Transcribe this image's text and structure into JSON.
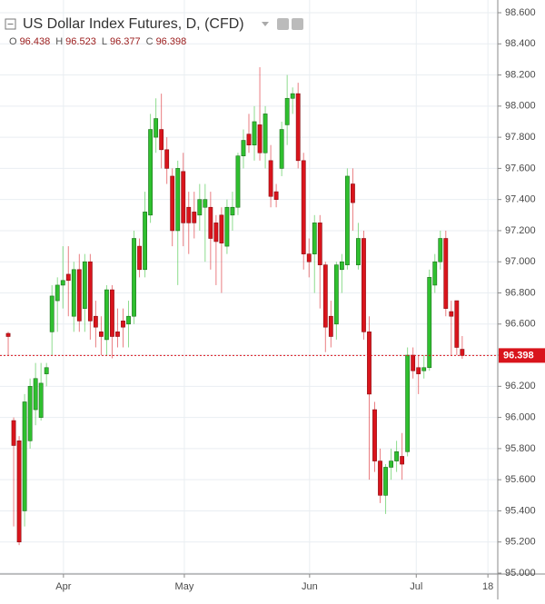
{
  "chart_data": {
    "type": "candlestick",
    "title": "US Dollar Index Futures, D, (CFD)",
    "ohlc_labels": [
      "O",
      "H",
      "L",
      "C"
    ],
    "up_color": "#2fc02f",
    "down_color": "#d9141c",
    "grid": true,
    "open": [
      96.54,
      95.98,
      95.85,
      95.4,
      95.85,
      96.05,
      96.0,
      96.28,
      96.55,
      96.75,
      96.85,
      96.92,
      96.65,
      96.95,
      96.7,
      97.0,
      96.65,
      96.55,
      96.5,
      96.82,
      96.55,
      96.62,
      96.6,
      96.65,
      97.1,
      96.95,
      97.3,
      97.8,
      97.85,
      97.72,
      97.55,
      97.2,
      97.58,
      97.35,
      97.32,
      97.3,
      97.35,
      97.35,
      97.25,
      97.3,
      97.1,
      97.3,
      97.35,
      97.68,
      97.82,
      97.75,
      97.88,
      97.7,
      97.65,
      97.45,
      97.6,
      97.88,
      98.05,
      98.08,
      97.65,
      97.05,
      97.05,
      97.25,
      96.98,
      96.65,
      96.6,
      96.95,
      96.98,
      97.5,
      96.98,
      97.15,
      96.55,
      96.05,
      95.72,
      95.5,
      95.68,
      95.72,
      95.75,
      95.78,
      96.4,
      96.32,
      96.3,
      96.32,
      96.85,
      97.0,
      97.15,
      96.68,
      96.75,
      96.438
    ],
    "high": [
      96.55,
      96.0,
      95.88,
      96.15,
      96.25,
      96.35,
      96.35,
      96.35,
      96.85,
      96.9,
      97.1,
      97.1,
      97.0,
      97.05,
      97.05,
      97.05,
      96.75,
      96.65,
      96.85,
      96.85,
      96.7,
      96.7,
      96.75,
      97.2,
      97.15,
      97.45,
      97.95,
      98.05,
      98.08,
      97.8,
      97.6,
      97.65,
      97.7,
      97.45,
      97.45,
      97.5,
      97.5,
      97.45,
      97.3,
      97.35,
      97.4,
      97.45,
      97.7,
      97.85,
      97.95,
      98.0,
      98.25,
      98.0,
      97.75,
      97.5,
      97.9,
      98.2,
      98.12,
      98.15,
      97.7,
      97.15,
      97.3,
      97.3,
      97.0,
      96.75,
      97.0,
      97.05,
      97.6,
      97.6,
      97.25,
      97.2,
      96.65,
      96.1,
      95.8,
      95.7,
      95.8,
      95.85,
      95.9,
      96.45,
      96.45,
      96.4,
      96.4,
      96.95,
      97.05,
      97.2,
      97.2,
      96.75,
      96.75,
      96.523
    ],
    "low": [
      96.4,
      95.3,
      95.18,
      95.3,
      95.8,
      95.95,
      95.98,
      96.2,
      96.4,
      96.55,
      96.7,
      96.65,
      96.55,
      96.55,
      96.55,
      96.5,
      96.45,
      96.4,
      96.4,
      96.38,
      96.45,
      96.45,
      96.45,
      96.6,
      96.9,
      96.9,
      97.25,
      97.7,
      97.6,
      97.5,
      97.1,
      96.85,
      97.1,
      97.05,
      97.15,
      97.2,
      97.0,
      96.95,
      96.85,
      96.8,
      97.05,
      97.2,
      97.3,
      97.6,
      97.7,
      97.65,
      97.65,
      97.6,
      97.35,
      97.35,
      97.55,
      97.75,
      97.95,
      97.6,
      96.95,
      96.9,
      96.8,
      96.7,
      96.42,
      96.45,
      96.5,
      96.8,
      96.95,
      97.2,
      96.95,
      96.5,
      95.6,
      95.65,
      95.45,
      95.38,
      95.6,
      95.65,
      95.6,
      95.75,
      96.25,
      96.15,
      96.25,
      96.3,
      96.8,
      96.95,
      96.65,
      96.4,
      96.4,
      96.377
    ],
    "close": [
      96.52,
      95.82,
      95.2,
      96.1,
      96.2,
      96.25,
      96.22,
      96.32,
      96.78,
      96.85,
      96.88,
      96.88,
      96.95,
      96.62,
      97.0,
      96.62,
      96.58,
      96.52,
      96.82,
      96.52,
      96.52,
      96.58,
      96.65,
      97.15,
      96.95,
      97.32,
      97.85,
      97.92,
      97.72,
      97.6,
      97.2,
      97.6,
      97.25,
      97.25,
      97.25,
      97.4,
      97.4,
      97.15,
      97.13,
      97.12,
      97.35,
      97.35,
      97.68,
      97.78,
      97.75,
      97.9,
      97.7,
      97.95,
      97.42,
      97.4,
      97.85,
      98.05,
      98.08,
      97.65,
      97.05,
      97.0,
      97.25,
      96.98,
      96.58,
      96.52,
      96.98,
      97.0,
      97.55,
      97.38,
      97.15,
      96.55,
      96.15,
      95.72,
      95.5,
      95.68,
      95.72,
      95.78,
      95.7,
      96.4,
      96.3,
      96.28,
      96.32,
      96.9,
      97.0,
      97.15,
      96.7,
      96.65,
      96.45,
      96.398
    ],
    "xlim": [
      -1.5,
      89.5
    ],
    "xticks": [
      {
        "value": 10.1,
        "label": "Apr"
      },
      {
        "value": 32.2,
        "label": "May"
      },
      {
        "value": 55.1,
        "label": "Jun"
      },
      {
        "value": 74.6,
        "label": "Jul"
      },
      {
        "value": 87.7,
        "label": "18"
      }
    ],
    "ylim": [
      95.0,
      98.6
    ],
    "yticks": [
      {
        "value": 95.0,
        "label": "95.000"
      },
      {
        "value": 95.2,
        "label": "95.200"
      },
      {
        "value": 95.4,
        "label": "95.400"
      },
      {
        "value": 95.6,
        "label": "95.600"
      },
      {
        "value": 95.8,
        "label": "95.800"
      },
      {
        "value": 96.0,
        "label": "96.000"
      },
      {
        "value": 96.2,
        "label": "96.200"
      },
      {
        "value": 96.4,
        "label": "96.400"
      },
      {
        "value": 96.6,
        "label": "96.600"
      },
      {
        "value": 96.8,
        "label": "96.800"
      },
      {
        "value": 97.0,
        "label": "97.000"
      },
      {
        "value": 97.2,
        "label": "97.200"
      },
      {
        "value": 97.4,
        "label": "97.400"
      },
      {
        "value": 97.6,
        "label": "97.600"
      },
      {
        "value": 97.8,
        "label": "97.800"
      },
      {
        "value": 98.0,
        "label": "98.000"
      },
      {
        "value": 98.2,
        "label": "98.200"
      },
      {
        "value": 98.4,
        "label": "98.400"
      },
      {
        "value": 98.6,
        "label": "98.600"
      }
    ]
  }
}
